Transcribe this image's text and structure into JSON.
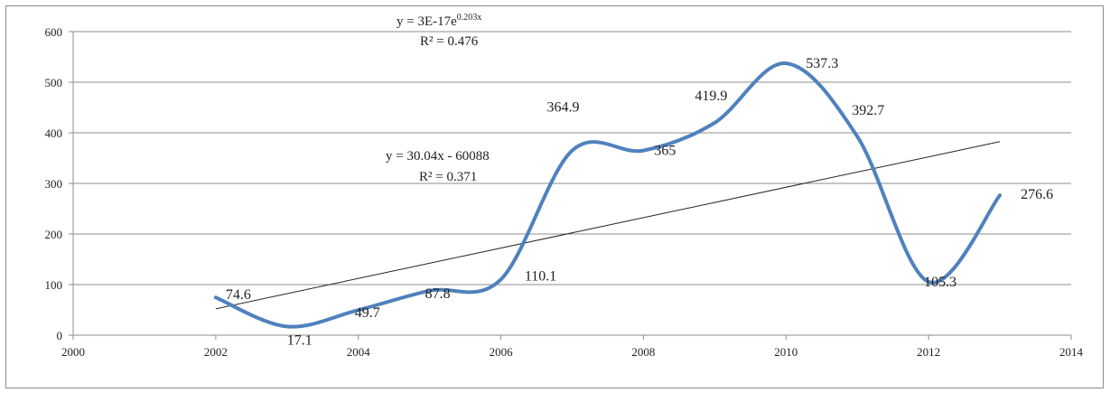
{
  "chart_data": {
    "type": "line",
    "title": "",
    "xlabel": "",
    "ylabel": "",
    "xlim": [
      2000,
      2014
    ],
    "ylim": [
      0,
      600
    ],
    "x_ticks": [
      2000,
      2002,
      2004,
      2006,
      2008,
      2010,
      2012,
      2014
    ],
    "y_ticks": [
      0,
      100,
      200,
      300,
      400,
      500,
      600
    ],
    "grid": "horizontal",
    "legend": "none",
    "series": [
      {
        "color": "#4f81bd",
        "smooth": true,
        "x": [
          2002,
          2003,
          2004,
          2005,
          2006,
          2007,
          2008,
          2009,
          2010,
          2011,
          2012,
          2013
        ],
        "y": [
          74.6,
          17.1,
          49.7,
          87.8,
          110.1,
          364.9,
          365,
          419.9,
          537.3,
          392.7,
          105.3,
          276.6
        ],
        "labels": [
          "74.6",
          "17.1",
          "49.7",
          "87.8",
          "110.1",
          "364.9",
          "365",
          "419.9",
          "537.3",
          "392.7",
          "105.3",
          "276.6"
        ]
      }
    ],
    "trendlines": [
      {
        "type": "linear",
        "color": "#222222",
        "slope": 30.04,
        "intercept": -60088,
        "equation": "y = 30.04x - 60088",
        "r2": "R² = 0.371"
      },
      {
        "type": "exponential",
        "color": "#222222",
        "coefficient": 3e-17,
        "rate": 0.203,
        "equation_main": "y = 3E-17e",
        "equation_exponent": "0.203x",
        "r2": "R² = 0.476"
      }
    ]
  }
}
